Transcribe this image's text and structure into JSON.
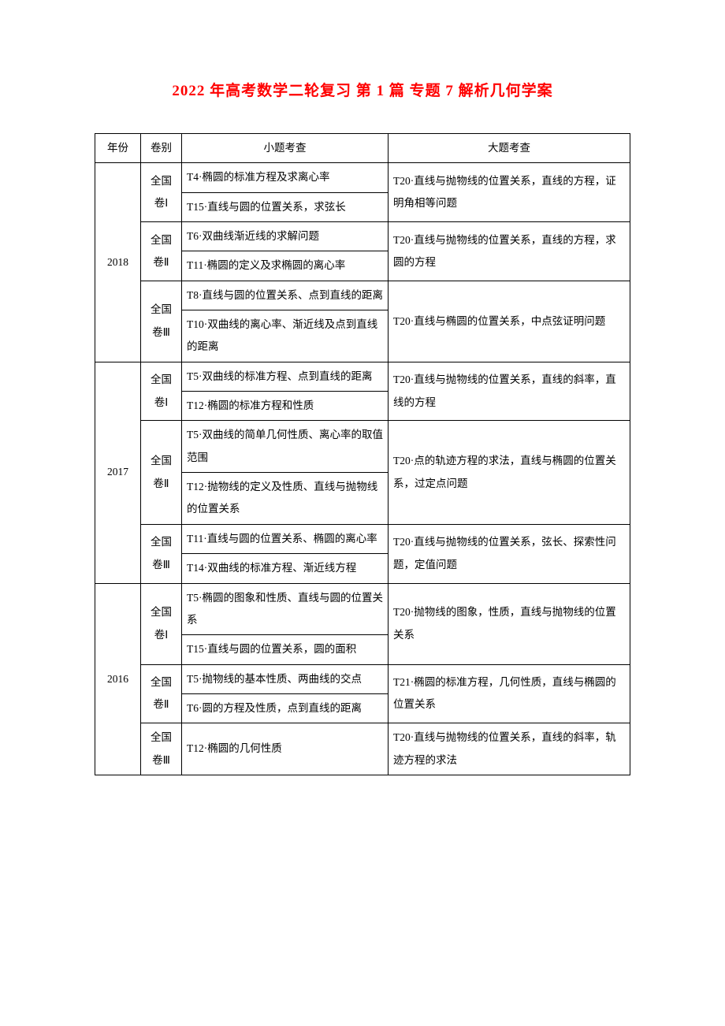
{
  "title": "2022 年高考数学二轮复习 第 1 篇 专题 7 解析几何学案",
  "header": {
    "year": "年份",
    "vol": "卷别",
    "small": "小题考查",
    "big": "大题考查"
  },
  "colors": {
    "title": "#ff0000",
    "text": "#000000",
    "border": "#000000",
    "background": "#ffffff"
  },
  "fonts": {
    "title_size": 19,
    "body_size": 13.5,
    "line_height": 2.1
  },
  "years": [
    {
      "year": "2018",
      "rows": [
        {
          "vol": "全国卷Ⅰ",
          "small": "T4·椭圆的标准方程及求离心率",
          "big": "T20·直线与抛物线的位置关系，直线的方程，证明角相等问题",
          "vol_rowspan": 2,
          "big_rowspan": 2
        },
        {
          "small": "T15·直线与圆的位置关系，求弦长"
        },
        {
          "vol": "全国卷Ⅱ",
          "small": "T6·双曲线渐近线的求解问题",
          "big": "T20·直线与抛物线的位置关系，直线的方程，求圆的方程",
          "vol_rowspan": 2,
          "big_rowspan": 2
        },
        {
          "small": "T11·椭圆的定义及求椭圆的离心率"
        },
        {
          "vol": "全国卷Ⅲ",
          "small": "T8·直线与圆的位置关系、点到直线的距离",
          "big": "T20·直线与椭圆的位置关系，中点弦证明问题",
          "vol_rowspan": 2,
          "big_rowspan": 2
        },
        {
          "small": "T10·双曲线的离心率、渐近线及点到直线的距离"
        }
      ]
    },
    {
      "year": "2017",
      "rows": [
        {
          "vol": "全国卷Ⅰ",
          "small": "T5·双曲线的标准方程、点到直线的距离",
          "big": "T20·直线与抛物线的位置关系，直线的斜率，直线的方程",
          "vol_rowspan": 2,
          "big_rowspan": 2
        },
        {
          "small": "T12·椭圆的标准方程和性质"
        },
        {
          "vol": "全国卷Ⅱ",
          "small": "T5·双曲线的简单几何性质、离心率的取值范围",
          "big": "T20·点的轨迹方程的求法，直线与椭圆的位置关系，过定点问题",
          "vol_rowspan": 2,
          "big_rowspan": 2
        },
        {
          "small": "T12·抛物线的定义及性质、直线与抛物线的位置关系"
        },
        {
          "vol": "全国卷Ⅲ",
          "small": "T11·直线与圆的位置关系、椭圆的离心率",
          "big": "T20·直线与抛物线的位置关系，弦长、探索性问题，定值问题",
          "vol_rowspan": 2,
          "big_rowspan": 2
        },
        {
          "small": "T14·双曲线的标准方程、渐近线方程"
        }
      ]
    },
    {
      "year": "2016",
      "rows": [
        {
          "vol": "全国卷Ⅰ",
          "small": "T5·椭圆的图象和性质、直线与圆的位置关系",
          "big": "T20·抛物线的图象，性质，直线与抛物线的位置关系",
          "vol_rowspan": 2,
          "big_rowspan": 2
        },
        {
          "small": "T15·直线与圆的位置关系，圆的面积"
        },
        {
          "vol": "全国卷Ⅱ",
          "small": "T5·抛物线的基本性质、两曲线的交点",
          "big": "T21·椭圆的标准方程，几何性质，直线与椭圆的位置关系",
          "vol_rowspan": 2,
          "big_rowspan": 2
        },
        {
          "small": "T6·圆的方程及性质，点到直线的距离"
        },
        {
          "vol": "全国卷Ⅲ",
          "small": "T12·椭圆的几何性质",
          "big": "T20·直线与抛物线的位置关系，直线的斜率，轨迹方程的求法",
          "vol_rowspan": 1,
          "big_rowspan": 1
        }
      ]
    }
  ]
}
